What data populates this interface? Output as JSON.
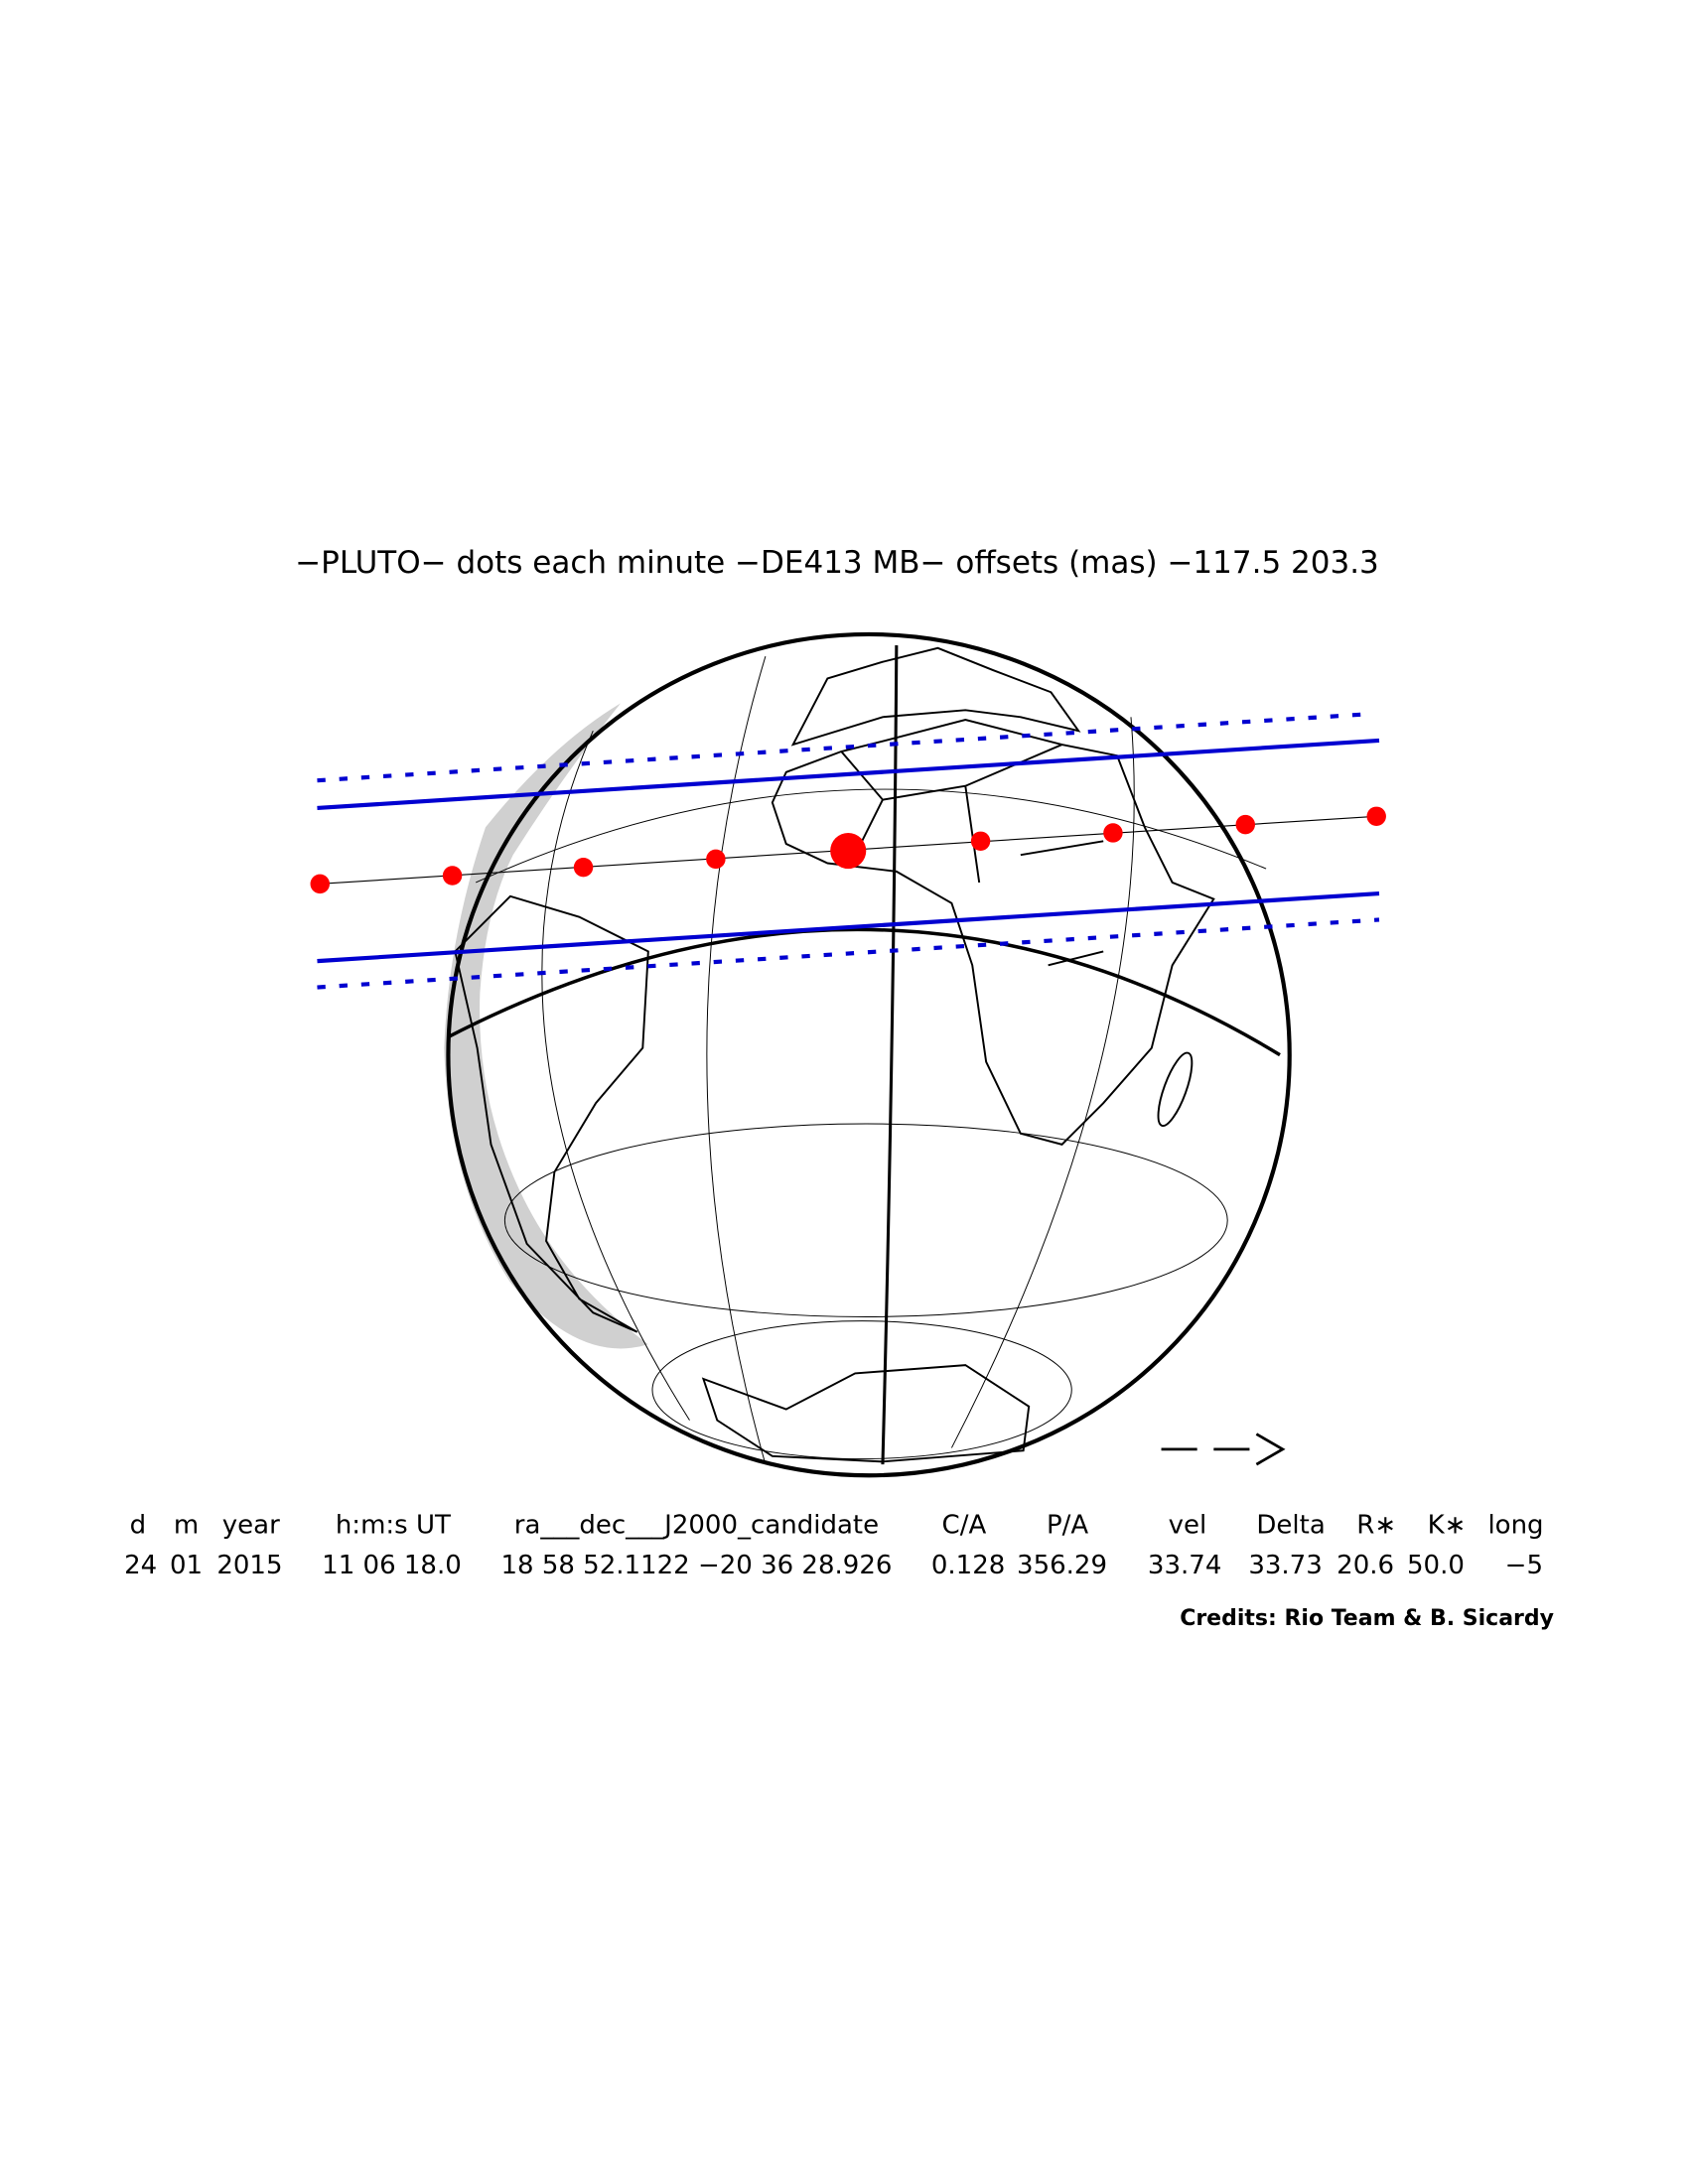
{
  "title": "−PLUTO− dots each minute −DE413 MB− offsets (mas) −117.5   203.3",
  "table": {
    "header": [
      "d",
      "m",
      "year",
      "h:m:s UT",
      "ra___dec___J2000_candidate",
      "C/A",
      "P/A",
      "vel",
      "Delta",
      "R∗",
      "K∗",
      "long"
    ],
    "values": [
      "24",
      "01",
      "2015",
      "11 06 18.0",
      "18 58 52.1122 −20 36 28.926",
      "0.128",
      "356.29",
      "33.74",
      "33.73",
      "20.6",
      "50.0",
      "−5"
    ]
  },
  "credits": "Credits: Rio Team & B. Sicardy"
}
